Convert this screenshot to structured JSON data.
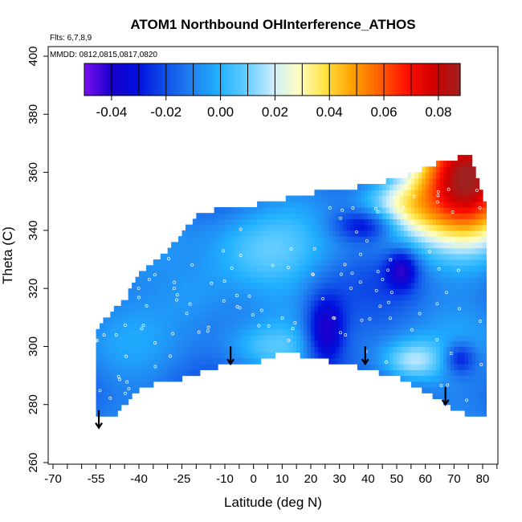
{
  "chart_data": {
    "type": "heatmap",
    "title": "ATOM1 Northbound OHInterference_ATHOS",
    "subtitle_flights": "Flts: 6,7,8,9",
    "subtitle_dates": "MMDD: 0812,0815,0817,0820",
    "xlabel": "Latitude (deg N)",
    "ylabel": "Theta (C)",
    "xlim": [
      -70,
      85
    ],
    "ylim": [
      260,
      405
    ],
    "x_ticks": [
      "-70",
      "-55",
      "-40",
      "-25",
      "-10",
      "0",
      "10",
      "20",
      "30",
      "40",
      "50",
      "60",
      "70",
      "80"
    ],
    "y_ticks": [
      "260",
      "280",
      "300",
      "320",
      "340",
      "360",
      "380",
      "400"
    ],
    "colorbar": {
      "ticks": [
        "-0.04",
        "-0.02",
        "0.00",
        "0.02",
        "0.04",
        "0.06",
        "0.08"
      ],
      "range": [
        -0.05,
        0.088
      ],
      "colors": [
        "#7a10ee",
        "#1a00cc",
        "#0010dd",
        "#1050e8",
        "#2080f0",
        "#20b0ff",
        "#60ccff",
        "#c8ecff",
        "#ffffc0",
        "#ffe040",
        "#ffa000",
        "#ff6000",
        "#ff1000",
        "#d00000",
        "#a02020"
      ]
    },
    "field": {
      "lat_range": [
        -55,
        80
      ],
      "theta_range": [
        276,
        366
      ],
      "summary": "Mostly slightly negative to ~0 (blue/light blue) across the domain; strong positive values up to ~0.085 in the upper-right (lat 45-80, theta 335-366); dark-blue minima near lat 20-30 at theta 295-315 and near lat 40 at theta 335-345."
    },
    "arrows_lat": [
      -54,
      -8,
      39,
      67
    ],
    "arrows_label": "flight profile markers"
  }
}
